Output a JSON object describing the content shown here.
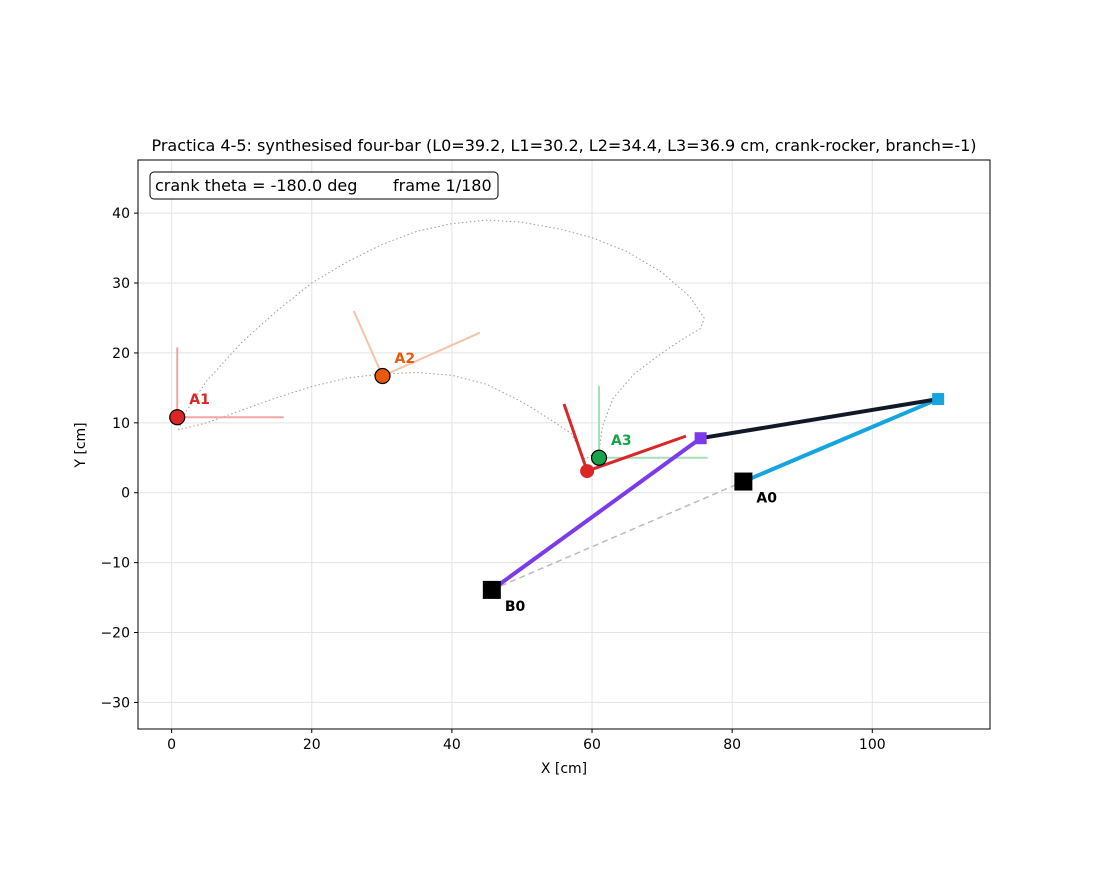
{
  "chart_data": {
    "type": "scatter",
    "title": "Practica 4-5: synthesised four-bar  (L0=39.2, L1=30.2, L2=34.4, L3=36.9 cm, crank-rocker, branch=-1)",
    "xlabel": "X  [cm]",
    "ylabel": "Y  [cm]",
    "xlim": [
      -4.8,
      116.8
    ],
    "ylim": [
      -33.8,
      47.6
    ],
    "xticks": [
      0,
      20,
      40,
      60,
      80,
      100
    ],
    "xtick_labels": [
      "0",
      "20",
      "40",
      "60",
      "80",
      "100"
    ],
    "yticks": [
      -30,
      -20,
      -10,
      0,
      10,
      20,
      30,
      40
    ],
    "ytick_labels": [
      "−30",
      "−20",
      "−10",
      "0",
      "10",
      "20",
      "30",
      "40"
    ],
    "grid": true,
    "info_box": {
      "crank_text": "crank theta = -180.0 deg",
      "frame_text": "frame 1/180",
      "placement": "top-left"
    },
    "coupler_path": [
      [
        1,
        9
      ],
      [
        2,
        11.5
      ],
      [
        5,
        16
      ],
      [
        10,
        21.5
      ],
      [
        15,
        26
      ],
      [
        20,
        30
      ],
      [
        25,
        33
      ],
      [
        30,
        35.5
      ],
      [
        35,
        37.4
      ],
      [
        40,
        38.5
      ],
      [
        45,
        39
      ],
      [
        50,
        38.7
      ],
      [
        55,
        37.8
      ],
      [
        60,
        36.5
      ],
      [
        65,
        34.5
      ],
      [
        70,
        31.5
      ],
      [
        74,
        28
      ],
      [
        76,
        25
      ],
      [
        75.5,
        23.5
      ],
      [
        73,
        22
      ],
      [
        70,
        20
      ],
      [
        66,
        17
      ],
      [
        63,
        13.5
      ],
      [
        61.5,
        9.5
      ],
      [
        61,
        6
      ],
      [
        59,
        4.8
      ],
      [
        57,
        8.5
      ],
      [
        54,
        10.5
      ],
      [
        50,
        13
      ],
      [
        45,
        15.5
      ],
      [
        40,
        16.8
      ],
      [
        35,
        17.2
      ],
      [
        30,
        17
      ],
      [
        25,
        16.4
      ],
      [
        20,
        15.2
      ],
      [
        15,
        13.6
      ],
      [
        10,
        11.8
      ],
      [
        5,
        10
      ],
      [
        1,
        9
      ]
    ],
    "ground_link": {
      "from": [
        45.7,
        -13.9
      ],
      "to": [
        81.6,
        1.6
      ],
      "style": "dashed",
      "color": "#b9b9c8"
    },
    "links": [
      {
        "name": "input-crank",
        "from": [
          81.6,
          1.6
        ],
        "to": [
          109.4,
          13.4
        ],
        "color": "#14a5e0"
      },
      {
        "name": "coupler",
        "from": [
          109.4,
          13.4
        ],
        "to": [
          75.5,
          7.8
        ],
        "color": "#111827"
      },
      {
        "name": "output-rocker",
        "from": [
          45.7,
          -13.9
        ],
        "to": [
          75.5,
          7.8
        ],
        "color": "#7c3aed"
      }
    ],
    "joints": [
      {
        "name": "crank-joint",
        "x": 109.4,
        "y": 13.4,
        "color": "#14a5e0"
      },
      {
        "name": "rocker-joint",
        "x": 75.5,
        "y": 7.8,
        "color": "#7c3aed"
      }
    ],
    "coupler_point": {
      "x": 59.3,
      "y": 3.1,
      "color": "#dc2626",
      "arm_a": [
        73.4,
        8.1
      ],
      "arm_b": [
        56,
        12.7
      ]
    },
    "ground_pivots": [
      {
        "label": "A0",
        "x": 81.6,
        "y": 1.6
      },
      {
        "label": "B0",
        "x": 45.7,
        "y": -13.9
      }
    ],
    "precision_points": [
      {
        "label": "A1",
        "x": 0.8,
        "y": 10.8,
        "color": "#dc2626",
        "frame_color": "#f2a5a5",
        "axis_a": [
          16.0,
          10.8
        ],
        "axis_b": [
          0.8,
          20.8
        ]
      },
      {
        "label": "A2",
        "x": 30.1,
        "y": 16.7,
        "color": "#ea580c",
        "frame_color": "#f6c3a6",
        "axis_a": [
          44.0,
          22.9
        ],
        "axis_b": [
          26.0,
          26.0
        ]
      },
      {
        "label": "A3",
        "x": 61.0,
        "y": 5.0,
        "color": "#16a34a",
        "frame_color": "#a6dfb5",
        "axis_a": [
          76.5,
          5.0
        ],
        "axis_b": [
          61.0,
          15.3
        ]
      }
    ]
  }
}
